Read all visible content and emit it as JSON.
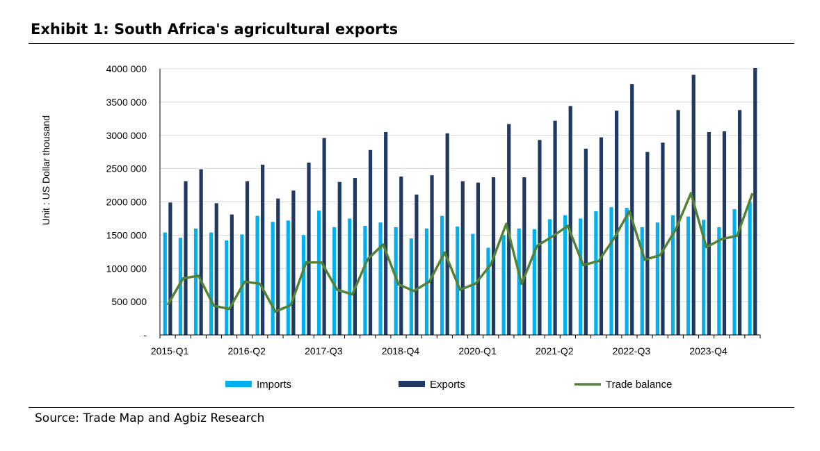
{
  "header": {
    "title": "Exhibit 1: South Africa's agricultural exports"
  },
  "footer": {
    "source": "Source: Trade Map and Agbiz Research"
  },
  "chart_data": {
    "type": "bar",
    "ylabel": "Unit : US Dollar thousand",
    "ylim": [
      0,
      4000000
    ],
    "yticks": [
      0,
      500000,
      1000000,
      1500000,
      2000000,
      2500000,
      3000000,
      3500000,
      4000000
    ],
    "ytick_labels": [
      "-",
      "500 000",
      "1000 000",
      "1500 000",
      "2000 000",
      "2500 000",
      "3000 000",
      "3500 000",
      "4000 000"
    ],
    "xtick_labels": [
      {
        "index": 0,
        "label": "2015-Q1"
      },
      {
        "index": 5,
        "label": "2016-Q2"
      },
      {
        "index": 10,
        "label": "2017-Q3"
      },
      {
        "index": 15,
        "label": "2018-Q4"
      },
      {
        "index": 20,
        "label": "2020-Q1"
      },
      {
        "index": 25,
        "label": "2021-Q2"
      },
      {
        "index": 30,
        "label": "2022-Q3"
      },
      {
        "index": 35,
        "label": "2023-Q4"
      }
    ],
    "categories": [
      "2015-Q1",
      "2015-Q2",
      "2015-Q3",
      "2015-Q4",
      "2016-Q1",
      "2016-Q2",
      "2016-Q3",
      "2016-Q4",
      "2017-Q1",
      "2017-Q2",
      "2017-Q3",
      "2017-Q4",
      "2018-Q1",
      "2018-Q2",
      "2018-Q3",
      "2018-Q4",
      "2019-Q1",
      "2019-Q2",
      "2019-Q3",
      "2019-Q4",
      "2020-Q1",
      "2020-Q2",
      "2020-Q3",
      "2020-Q4",
      "2021-Q1",
      "2021-Q2",
      "2021-Q3",
      "2021-Q4",
      "2022-Q1",
      "2022-Q2",
      "2022-Q3",
      "2022-Q4",
      "2023-Q1",
      "2023-Q2",
      "2023-Q3",
      "2023-Q4",
      "2024-Q1",
      "2024-Q2",
      "2024-Q3"
    ],
    "series": [
      {
        "name": "Imports",
        "kind": "bar",
        "color": "#00B0F0",
        "values": [
          1540000,
          1460000,
          1600000,
          1540000,
          1420000,
          1510000,
          1790000,
          1700000,
          1720000,
          1500000,
          1870000,
          1620000,
          1750000,
          1640000,
          1690000,
          1620000,
          1450000,
          1600000,
          1790000,
          1630000,
          1520000,
          1310000,
          1500000,
          1600000,
          1590000,
          1740000,
          1800000,
          1750000,
          1860000,
          1920000,
          1910000,
          1620000,
          1690000,
          1800000,
          1780000,
          1730000,
          1620000,
          1890000,
          2000000
        ]
      },
      {
        "name": "Exports",
        "kind": "bar",
        "color": "#1F3864",
        "values": [
          1990000,
          2310000,
          2490000,
          1980000,
          1810000,
          2310000,
          2560000,
          2050000,
          2170000,
          2590000,
          2960000,
          2300000,
          2360000,
          2780000,
          3050000,
          2380000,
          2110000,
          2400000,
          3030000,
          2310000,
          2290000,
          2370000,
          3170000,
          2370000,
          2930000,
          3220000,
          3440000,
          2800000,
          2970000,
          3370000,
          3770000,
          2750000,
          2890000,
          3380000,
          3910000,
          3050000,
          3060000,
          3380000,
          4010000
        ]
      },
      {
        "name": "Trade balance",
        "kind": "line",
        "color": "#548235",
        "values": [
          450000,
          850000,
          890000,
          440000,
          390000,
          800000,
          770000,
          350000,
          450000,
          1090000,
          1090000,
          680000,
          610000,
          1140000,
          1360000,
          760000,
          660000,
          800000,
          1240000,
          680000,
          770000,
          1060000,
          1670000,
          770000,
          1340000,
          1480000,
          1640000,
          1050000,
          1110000,
          1450000,
          1860000,
          1130000,
          1200000,
          1580000,
          2130000,
          1320000,
          1440000,
          1490000,
          2130000
        ]
      }
    ],
    "legend": "bottom",
    "grid": "horizontal"
  }
}
